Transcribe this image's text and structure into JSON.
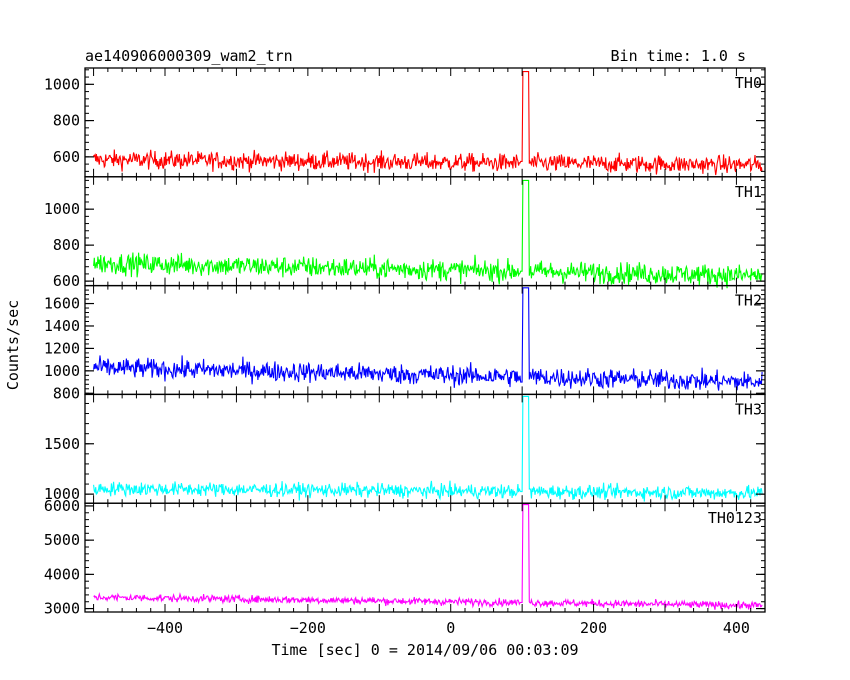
{
  "header": {
    "title": "ae140906000309_wam2_trn",
    "bin_time": "Bin time: 1.0 s"
  },
  "chart_data": {
    "type": "line",
    "title": "ae140906000309_wam2_trn",
    "xlabel": "Time [sec] 0 = 2014/09/06 00:03:09",
    "ylabel": "Counts/sec",
    "xlim": [
      -512,
      440
    ],
    "x_ticks": [
      -400,
      -200,
      0,
      200,
      400
    ],
    "x_tick_labels": [
      "−400",
      "−200",
      "0",
      "200",
      "400"
    ],
    "grid": false,
    "burst": {
      "start": 101,
      "end": 110
    },
    "panels": [
      {
        "name": "TH0",
        "color": "#ff0000",
        "ylim": [
          490,
          1090
        ],
        "y_ticks": [
          600,
          800,
          1000
        ],
        "y_tick_labels": [
          "600",
          "800",
          "1000"
        ],
        "baseline_start": 585,
        "baseline_end": 555,
        "noise": 25,
        "pre_burst": 575,
        "burst_level": 1070
      },
      {
        "name": "TH1",
        "color": "#00ff00",
        "ylim": [
          575,
          1180
        ],
        "y_ticks": [
          600,
          800,
          1000
        ],
        "y_tick_labels": [
          "600",
          "800",
          "1000"
        ],
        "baseline_start": 700,
        "baseline_end": 630,
        "noise": 30,
        "pre_burst": 655,
        "burst_level": 1160
      },
      {
        "name": "TH2",
        "color": "#0000ff",
        "ylim": [
          790,
          1760
        ],
        "y_ticks": [
          800,
          1000,
          1200,
          1400,
          1600
        ],
        "y_tick_labels": [
          "800",
          "1000",
          "1200",
          "1400",
          "1600"
        ],
        "baseline_start": 1030,
        "baseline_end": 900,
        "noise": 45,
        "pre_burst": 900,
        "burst_level": 1740
      },
      {
        "name": "TH3",
        "color": "#00ffff",
        "ylim": [
          910,
          1990
        ],
        "y_ticks": [
          1000,
          1500
        ],
        "y_tick_labels": [
          "1000",
          "1500"
        ],
        "baseline_start": 1055,
        "baseline_end": 1010,
        "noise": 35,
        "pre_burst": 1025,
        "burst_level": 1970
      },
      {
        "name": "TH0123",
        "color": "#ff00ff",
        "ylim": [
          2900,
          6080
        ],
        "y_ticks": [
          3000,
          4000,
          5000,
          6000
        ],
        "y_tick_labels": [
          "3000",
          "4000",
          "5000",
          "6000"
        ],
        "baseline_start": 3330,
        "baseline_end": 3090,
        "noise": 55,
        "pre_burst": 3180,
        "burst_level": 6040
      }
    ]
  }
}
